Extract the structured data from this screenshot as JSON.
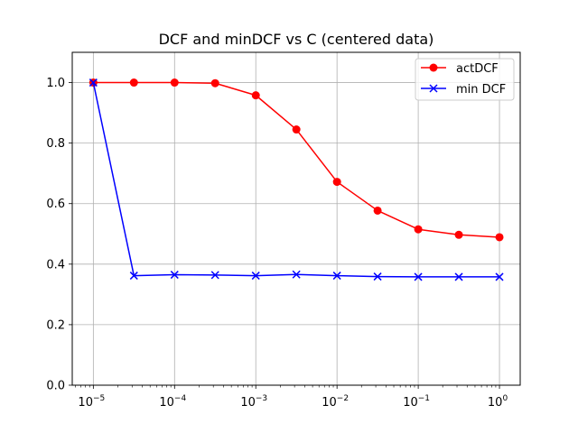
{
  "chart_data": {
    "type": "line",
    "title": "DCF and minDCF vs C (centered data)",
    "xlabel": "",
    "ylabel": "",
    "x_scale": "log",
    "xlim": [
      5.5e-06,
      1.8
    ],
    "ylim": [
      0.0,
      1.1
    ],
    "grid": true,
    "legend_position": "top-right",
    "x": [
      1e-05,
      3.16e-05,
      0.0001,
      0.000316,
      0.001,
      0.00316,
      0.01,
      0.0316,
      0.1,
      0.316,
      1.0
    ],
    "x_ticks": [
      {
        "value": 1e-05,
        "base": "10",
        "exp": "−5"
      },
      {
        "value": 0.0001,
        "base": "10",
        "exp": "−4"
      },
      {
        "value": 0.001,
        "base": "10",
        "exp": "−3"
      },
      {
        "value": 0.01,
        "base": "10",
        "exp": "−2"
      },
      {
        "value": 0.1,
        "base": "10",
        "exp": "−1"
      },
      {
        "value": 1.0,
        "base": "10",
        "exp": "0"
      }
    ],
    "y_ticks": [
      {
        "value": 0.0,
        "label": "0.0"
      },
      {
        "value": 0.2,
        "label": "0.2"
      },
      {
        "value": 0.4,
        "label": "0.4"
      },
      {
        "value": 0.6,
        "label": "0.6"
      },
      {
        "value": 0.8,
        "label": "0.8"
      },
      {
        "value": 1.0,
        "label": "1.0"
      }
    ],
    "series": [
      {
        "name": "actDCF",
        "color": "#ff0000",
        "marker": "circle",
        "values": [
          1.0,
          1.0,
          1.0,
          0.998,
          0.958,
          0.845,
          0.672,
          0.577,
          0.515,
          0.497,
          0.489
        ]
      },
      {
        "name": "min DCF",
        "color": "#0000ff",
        "marker": "x",
        "values": [
          1.0,
          0.362,
          0.365,
          0.364,
          0.362,
          0.366,
          0.362,
          0.359,
          0.358,
          0.358,
          0.358
        ]
      }
    ]
  }
}
